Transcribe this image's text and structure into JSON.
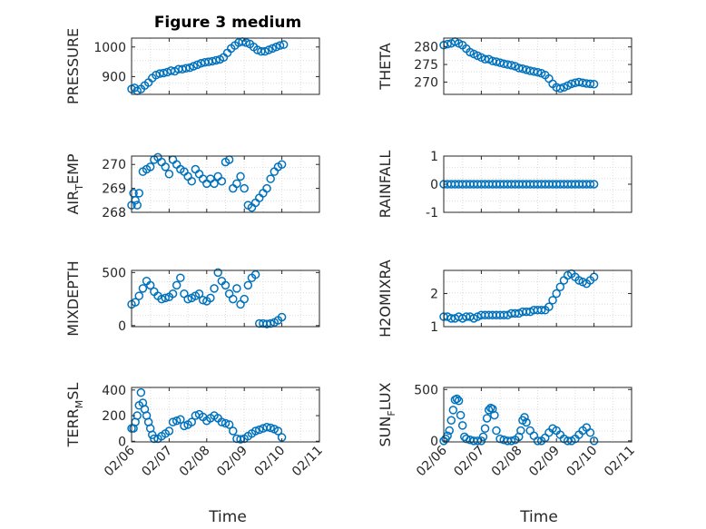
{
  "figure": {
    "title": "Figure 3 medium",
    "xlabel": "Time",
    "x_tick_labels": [
      "02/06",
      "02/07",
      "02/08",
      "02/09",
      "02/10",
      "02/11"
    ]
  },
  "colors": {
    "marker": "#0072BD",
    "grid": "#dcdcdc",
    "axis": "#262626"
  },
  "chart_data": [
    {
      "type": "scatter",
      "id": "pressure",
      "ylabel": "PRESSURE",
      "xlim": [
        0,
        5
      ],
      "ylim": [
        840,
        1030
      ],
      "yticks": [
        900,
        1000
      ],
      "x": [
        0.0,
        0.08,
        0.15,
        0.25,
        0.35,
        0.45,
        0.55,
        0.65,
        0.75,
        0.85,
        0.95,
        1.05,
        1.15,
        1.25,
        1.35,
        1.45,
        1.55,
        1.65,
        1.75,
        1.85,
        1.95,
        2.05,
        2.15,
        2.25,
        2.35,
        2.45,
        2.55,
        2.65,
        2.75,
        2.85,
        2.95,
        3.05,
        3.15,
        3.25,
        3.35,
        3.45,
        3.55,
        3.65,
        3.75,
        3.85,
        3.95,
        4.05
      ],
      "y": [
        858,
        862,
        852,
        858,
        870,
        880,
        895,
        905,
        910,
        912,
        915,
        920,
        918,
        925,
        925,
        928,
        930,
        935,
        940,
        945,
        948,
        950,
        952,
        955,
        958,
        965,
        980,
        995,
        1005,
        1015,
        1018,
        1015,
        1010,
        1000,
        990,
        985,
        985,
        990,
        995,
        1000,
        1005,
        1008
      ]
    },
    {
      "type": "scatter",
      "id": "theta",
      "ylabel": "THETA",
      "xlim": [
        0,
        5
      ],
      "ylim": [
        266.5,
        282.5
      ],
      "yticks": [
        270,
        275,
        280
      ],
      "x": [
        0.0,
        0.1,
        0.2,
        0.3,
        0.4,
        0.5,
        0.6,
        0.7,
        0.8,
        0.9,
        1.0,
        1.1,
        1.2,
        1.3,
        1.4,
        1.5,
        1.6,
        1.7,
        1.8,
        1.9,
        2.0,
        2.1,
        2.2,
        2.3,
        2.4,
        2.5,
        2.6,
        2.7,
        2.8,
        2.9,
        3.0,
        3.1,
        3.2,
        3.3,
        3.4,
        3.5,
        3.6,
        3.7,
        3.8,
        3.9,
        4.0
      ],
      "y": [
        280.5,
        280.8,
        281,
        281.5,
        281,
        280.5,
        279.5,
        278.5,
        278,
        277.5,
        277,
        276.5,
        276.5,
        276,
        275.8,
        275.5,
        275.2,
        275,
        274.8,
        274.5,
        274,
        273.8,
        273.5,
        273.2,
        273,
        272.8,
        272.5,
        272,
        271,
        269.5,
        268.5,
        268.2,
        268.5,
        269,
        269.5,
        269.8,
        270,
        269.8,
        269.6,
        269.5,
        269.4
      ]
    },
    {
      "type": "scatter",
      "id": "air_temp",
      "ylabel": "AIR",
      "ylabel_sub": "T",
      "ylabel_tail": "EMP",
      "xlim": [
        0,
        5
      ],
      "ylim": [
        268,
        270.35
      ],
      "yticks": [
        268,
        269,
        270
      ],
      "x": [
        0.0,
        0.05,
        0.1,
        0.15,
        0.2,
        0.3,
        0.4,
        0.5,
        0.6,
        0.7,
        0.8,
        0.9,
        1.0,
        1.1,
        1.2,
        1.3,
        1.4,
        1.5,
        1.6,
        1.7,
        1.8,
        1.9,
        2.0,
        2.1,
        2.2,
        2.3,
        2.4,
        2.5,
        2.6,
        2.7,
        2.8,
        2.9,
        3.0,
        3.1,
        3.2,
        3.3,
        3.4,
        3.5,
        3.6,
        3.7,
        3.8,
        3.9,
        4.0
      ],
      "y": [
        268.3,
        268.8,
        268.5,
        268.3,
        268.8,
        269.7,
        269.8,
        269.9,
        270.2,
        270.3,
        270.1,
        269.9,
        269.6,
        270.2,
        270.0,
        269.8,
        269.7,
        269.5,
        269.3,
        269.8,
        269.6,
        269.4,
        269.2,
        269.4,
        269.2,
        269.5,
        269.3,
        270.1,
        270.2,
        269.0,
        269.2,
        269.5,
        269.0,
        268.3,
        268.2,
        268.4,
        268.6,
        268.8,
        269.0,
        269.4,
        269.7,
        269.9,
        270.0
      ]
    },
    {
      "type": "scatter",
      "id": "rainfall",
      "ylabel": "RAINFALL",
      "xlim": [
        0,
        5
      ],
      "ylim": [
        -1,
        1
      ],
      "yticks": [
        -1,
        0,
        1
      ],
      "x": [
        0.0,
        0.1,
        0.2,
        0.3,
        0.4,
        0.5,
        0.6,
        0.7,
        0.8,
        0.9,
        1.0,
        1.1,
        1.2,
        1.3,
        1.4,
        1.5,
        1.6,
        1.7,
        1.8,
        1.9,
        2.0,
        2.1,
        2.2,
        2.3,
        2.4,
        2.5,
        2.6,
        2.7,
        2.8,
        2.9,
        3.0,
        3.1,
        3.2,
        3.3,
        3.4,
        3.5,
        3.6,
        3.7,
        3.8,
        3.9,
        4.0
      ],
      "y": [
        0,
        0,
        0,
        0,
        0,
        0,
        0,
        0,
        0,
        0,
        0,
        0,
        0,
        0,
        0,
        0,
        0,
        0,
        0,
        0,
        0,
        0,
        0,
        0,
        0,
        0,
        0,
        0,
        0,
        0,
        0,
        0,
        0,
        0,
        0,
        0,
        0,
        0,
        0,
        0,
        0
      ]
    },
    {
      "type": "scatter",
      "id": "mixdepth",
      "ylabel": "MIXDEPTH",
      "xlim": [
        0,
        5
      ],
      "ylim": [
        -10,
        520
      ],
      "yticks": [
        0,
        500
      ],
      "x": [
        0.0,
        0.1,
        0.2,
        0.3,
        0.4,
        0.5,
        0.6,
        0.7,
        0.8,
        0.9,
        1.0,
        1.1,
        1.2,
        1.3,
        1.4,
        1.5,
        1.6,
        1.7,
        1.8,
        1.9,
        2.0,
        2.1,
        2.2,
        2.3,
        2.4,
        2.5,
        2.6,
        2.7,
        2.8,
        2.9,
        3.0,
        3.1,
        3.2,
        3.3,
        3.4,
        3.5,
        3.6,
        3.7,
        3.8,
        3.9,
        4.0
      ],
      "y": [
        200,
        220,
        280,
        350,
        420,
        380,
        320,
        280,
        250,
        260,
        270,
        300,
        380,
        450,
        300,
        250,
        260,
        280,
        300,
        240,
        230,
        260,
        350,
        500,
        420,
        380,
        300,
        250,
        350,
        200,
        250,
        380,
        450,
        480,
        20,
        20,
        15,
        20,
        30,
        50,
        80
      ]
    },
    {
      "type": "scatter",
      "id": "h2omixra",
      "ylabel": "H2OMIXRA",
      "xlim": [
        0,
        5
      ],
      "ylim": [
        1,
        2.7
      ],
      "yticks": [
        1,
        2
      ],
      "x": [
        0.0,
        0.1,
        0.2,
        0.3,
        0.4,
        0.5,
        0.6,
        0.7,
        0.8,
        0.9,
        1.0,
        1.1,
        1.2,
        1.3,
        1.4,
        1.5,
        1.6,
        1.7,
        1.8,
        1.9,
        2.0,
        2.1,
        2.2,
        2.3,
        2.4,
        2.5,
        2.6,
        2.7,
        2.8,
        2.9,
        3.0,
        3.1,
        3.2,
        3.3,
        3.4,
        3.5,
        3.6,
        3.7,
        3.8,
        3.9,
        4.0
      ],
      "y": [
        1.3,
        1.3,
        1.25,
        1.25,
        1.3,
        1.25,
        1.3,
        1.3,
        1.25,
        1.3,
        1.35,
        1.35,
        1.35,
        1.35,
        1.35,
        1.35,
        1.35,
        1.35,
        1.4,
        1.4,
        1.4,
        1.45,
        1.45,
        1.45,
        1.5,
        1.5,
        1.5,
        1.5,
        1.6,
        1.8,
        2.0,
        2.2,
        2.4,
        2.55,
        2.6,
        2.5,
        2.4,
        2.35,
        2.3,
        2.4,
        2.5
      ]
    },
    {
      "type": "scatter",
      "id": "terr_msl",
      "ylabel": "TERR",
      "ylabel_sub": "M",
      "ylabel_tail": "SL",
      "xlim": [
        0,
        5
      ],
      "ylim": [
        -5,
        420
      ],
      "yticks": [
        0,
        200,
        400
      ],
      "x": [
        0.0,
        0.05,
        0.1,
        0.15,
        0.2,
        0.25,
        0.3,
        0.35,
        0.4,
        0.45,
        0.5,
        0.55,
        0.6,
        0.7,
        0.8,
        0.9,
        1.0,
        1.1,
        1.2,
        1.3,
        1.4,
        1.5,
        1.6,
        1.7,
        1.8,
        1.9,
        2.0,
        2.1,
        2.2,
        2.3,
        2.4,
        2.5,
        2.6,
        2.7,
        2.8,
        2.9,
        3.0,
        3.1,
        3.2,
        3.3,
        3.4,
        3.5,
        3.6,
        3.7,
        3.8,
        3.9,
        4.0
      ],
      "y": [
        100,
        100,
        150,
        200,
        280,
        380,
        300,
        250,
        200,
        150,
        100,
        50,
        20,
        20,
        40,
        60,
        80,
        150,
        160,
        170,
        120,
        130,
        150,
        200,
        210,
        190,
        160,
        180,
        200,
        180,
        150,
        140,
        130,
        80,
        20,
        15,
        20,
        40,
        60,
        80,
        90,
        100,
        110,
        105,
        95,
        80,
        30
      ]
    },
    {
      "type": "scatter",
      "id": "sun_flux",
      "ylabel": "SUN",
      "ylabel_sub": "F",
      "ylabel_tail": "LUX",
      "xlim": [
        0,
        5
      ],
      "ylim": [
        -10,
        520
      ],
      "yticks": [
        0,
        500
      ],
      "x": [
        0.0,
        0.05,
        0.1,
        0.15,
        0.2,
        0.25,
        0.3,
        0.35,
        0.4,
        0.45,
        0.5,
        0.55,
        0.6,
        0.7,
        0.8,
        0.9,
        1.0,
        1.05,
        1.1,
        1.15,
        1.2,
        1.25,
        1.3,
        1.35,
        1.4,
        1.5,
        1.6,
        1.7,
        1.8,
        1.9,
        2.0,
        2.05,
        2.1,
        2.15,
        2.2,
        2.3,
        2.4,
        2.5,
        2.6,
        2.7,
        2.8,
        2.9,
        3.0,
        3.1,
        3.2,
        3.3,
        3.4,
        3.5,
        3.6,
        3.7,
        3.8,
        3.9,
        4.0
      ],
      "y": [
        0,
        20,
        50,
        100,
        200,
        300,
        400,
        410,
        390,
        250,
        150,
        40,
        20,
        10,
        0,
        0,
        0,
        40,
        120,
        220,
        300,
        320,
        310,
        250,
        100,
        20,
        10,
        0,
        0,
        10,
        40,
        100,
        200,
        230,
        180,
        100,
        50,
        0,
        0,
        30,
        80,
        120,
        100,
        60,
        20,
        0,
        0,
        20,
        60,
        100,
        130,
        80,
        0
      ]
    }
  ]
}
